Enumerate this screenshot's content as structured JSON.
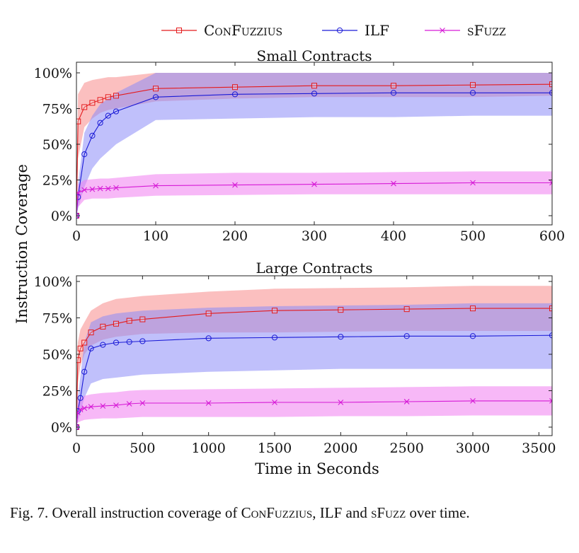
{
  "legend": [
    {
      "label": "ConFuzzius",
      "color": "#e41a1c",
      "marker": "square"
    },
    {
      "label": "ILF",
      "color": "#1a1ad6",
      "marker": "circle"
    },
    {
      "label": "sFuzz",
      "color": "#d61ad6",
      "marker": "cross"
    }
  ],
  "y_axis_label": "Instruction Coverage",
  "x_axis_label": "Time in Seconds",
  "caption": {
    "prefix": "Fig. 7.  Overall instruction coverage of ",
    "name1": "ConFuzzius",
    "sep1": ", ILF and ",
    "name2": "sFuzz",
    "suffix": " over time."
  },
  "colors": {
    "confuzzius": "#e41a1c",
    "ilf": "#1a1ad6",
    "sfuzz": "#d61ad6",
    "confuzzius_band": "#f88a8a",
    "ilf_band": "#8c8cf8",
    "sfuzz_band": "#f07ef0"
  },
  "chart_data": [
    {
      "type": "line",
      "title": "Small Contracts",
      "ylabel": "Instruction Coverage",
      "xlabel": "",
      "xlim": [
        0,
        600
      ],
      "ylim": [
        0,
        100
      ],
      "xticks": [
        0,
        100,
        200,
        300,
        400,
        500,
        600
      ],
      "yticks": [
        0,
        25,
        50,
        75,
        100
      ],
      "ytick_labels": [
        "0%",
        "25%",
        "50%",
        "75%",
        "100%"
      ],
      "series": [
        {
          "name": "ConFuzzius",
          "x": [
            0,
            2,
            10,
            20,
            30,
            40,
            50,
            100,
            200,
            300,
            400,
            500,
            600
          ],
          "y": [
            0,
            66,
            76,
            79,
            81,
            83,
            84,
            89,
            90,
            91,
            91,
            91.5,
            92
          ],
          "band_lower": [
            0,
            40,
            62,
            68,
            72,
            74,
            75,
            80,
            82,
            83,
            83,
            83,
            84
          ],
          "band_upper": [
            0,
            85,
            93,
            95,
            96,
            97,
            97,
            100,
            100,
            100,
            100,
            100,
            100
          ]
        },
        {
          "name": "ILF",
          "x": [
            0,
            2,
            10,
            20,
            30,
            40,
            50,
            100,
            200,
            300,
            400,
            500,
            600
          ],
          "y": [
            0,
            13,
            43,
            56,
            65,
            70,
            73,
            83,
            85,
            85.5,
            86,
            86,
            86
          ],
          "band_lower": [
            0,
            5,
            20,
            33,
            40,
            45,
            50,
            67,
            68,
            69,
            69,
            70,
            70
          ],
          "band_upper": [
            0,
            22,
            58,
            70,
            78,
            82,
            86,
            100,
            100,
            100,
            100,
            100,
            100
          ]
        },
        {
          "name": "sFuzz",
          "x": [
            0,
            2,
            10,
            20,
            30,
            40,
            50,
            100,
            200,
            300,
            400,
            500,
            600
          ],
          "y": [
            0,
            16,
            18,
            18.5,
            19,
            19,
            19.5,
            21,
            21.5,
            22,
            22.5,
            23,
            23
          ],
          "band_lower": [
            0,
            6,
            11,
            12,
            12,
            12,
            12.5,
            14,
            14.5,
            15,
            15,
            15,
            15
          ],
          "band_upper": [
            0,
            22,
            25,
            25.5,
            26,
            26,
            26.5,
            29,
            30,
            30,
            30.5,
            31,
            31
          ]
        }
      ]
    },
    {
      "type": "line",
      "title": "Large Contracts",
      "ylabel": "Instruction Coverage",
      "xlabel": "Time in Seconds",
      "xlim": [
        0,
        3600
      ],
      "ylim": [
        0,
        100
      ],
      "xticks": [
        0,
        500,
        1000,
        1500,
        2000,
        2500,
        3000,
        3500
      ],
      "yticks": [
        0,
        25,
        50,
        75,
        100
      ],
      "ytick_labels": [
        "0%",
        "25%",
        "50%",
        "75%",
        "100%"
      ],
      "series": [
        {
          "name": "ConFuzzius",
          "x": [
            0,
            10,
            30,
            60,
            110,
            200,
            300,
            400,
            500,
            1000,
            1500,
            2000,
            2500,
            3000,
            3600
          ],
          "y": [
            0,
            46,
            54,
            58,
            65,
            69,
            71,
            73,
            74,
            78,
            80,
            80.5,
            81,
            81.5,
            81.5
          ],
          "band_lower": [
            0,
            30,
            42,
            50,
            56,
            60,
            62,
            63,
            64,
            65,
            65,
            65.5,
            66,
            66,
            66
          ],
          "band_upper": [
            0,
            58,
            67,
            72,
            80,
            85,
            88,
            89,
            90,
            93,
            95,
            95.5,
            96,
            97,
            97
          ]
        },
        {
          "name": "ILF",
          "x": [
            0,
            10,
            30,
            60,
            110,
            200,
            300,
            400,
            500,
            1000,
            1500,
            2000,
            2500,
            3000,
            3600
          ],
          "y": [
            0,
            11,
            20,
            38,
            54,
            56.5,
            58,
            58.5,
            59,
            61,
            61.5,
            62,
            62.5,
            62.5,
            63
          ],
          "band_lower": [
            0,
            4,
            10,
            20,
            30,
            33,
            34,
            35,
            36,
            38,
            39,
            40,
            40,
            40,
            40
          ],
          "band_upper": [
            0,
            20,
            35,
            58,
            72,
            76,
            78,
            79,
            80,
            82,
            83,
            83.5,
            84,
            85,
            85
          ]
        },
        {
          "name": "sFuzz",
          "x": [
            0,
            10,
            30,
            60,
            110,
            200,
            300,
            400,
            500,
            1000,
            1500,
            2000,
            2500,
            3000,
            3600
          ],
          "y": [
            0,
            10,
            12,
            13,
            14,
            14.5,
            15,
            16,
            16.5,
            16.5,
            17,
            17,
            17.5,
            18,
            18
          ],
          "band_lower": [
            0,
            3,
            4,
            5,
            5.5,
            6,
            6,
            6.5,
            7,
            7,
            7,
            7.5,
            7.5,
            8,
            8
          ],
          "band_upper": [
            0,
            18,
            20,
            21.5,
            22.5,
            23.5,
            24,
            25,
            25.5,
            26,
            26.5,
            27,
            27.5,
            28,
            28
          ]
        }
      ]
    }
  ]
}
